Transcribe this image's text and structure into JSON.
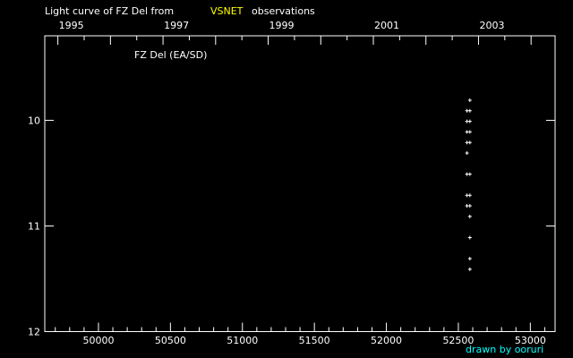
{
  "chart_data": {
    "type": "scatter",
    "title_prefix": "Light curve of FZ Del from",
    "title_source": "VSNET",
    "title_suffix": "observations",
    "object_label": "FZ Del (EA/SD)",
    "credit": "drawn by ooruri",
    "xlabel": "",
    "ylabel": "",
    "xlim": [
      49627,
      53172
    ],
    "ylim": [
      12,
      9.2
    ],
    "y_inverted": true,
    "x_ticks": [
      50000,
      50500,
      51000,
      51500,
      52000,
      52500,
      53000
    ],
    "x_tick_labels": [
      "50000",
      "50500",
      "51000",
      "51500",
      "52000",
      "52500",
      "53000"
    ],
    "y_ticks": [
      10,
      11,
      12
    ],
    "y_tick_labels": [
      "10",
      "11",
      "12"
    ],
    "top_axis_year_labels": [
      "1995",
      "1997",
      "1999",
      "2001",
      "2003"
    ],
    "top_axis_years": [
      1995,
      1997,
      1999,
      2001,
      2003
    ],
    "grid": false,
    "colors": {
      "background": "#000000",
      "axes": "#ffffff",
      "points": "#ffffff",
      "source": "#ffff00",
      "credit": "#00ffff"
    },
    "marker": "plus",
    "points": [
      {
        "x": 52580,
        "y": 9.81
      },
      {
        "x": 52560,
        "y": 9.91
      },
      {
        "x": 52580,
        "y": 9.91
      },
      {
        "x": 52560,
        "y": 10.01
      },
      {
        "x": 52580,
        "y": 10.01
      },
      {
        "x": 52560,
        "y": 10.11
      },
      {
        "x": 52580,
        "y": 10.11
      },
      {
        "x": 52560,
        "y": 10.21
      },
      {
        "x": 52580,
        "y": 10.21
      },
      {
        "x": 52560,
        "y": 10.31
      },
      {
        "x": 52560,
        "y": 10.51
      },
      {
        "x": 52580,
        "y": 10.51
      },
      {
        "x": 52560,
        "y": 10.71
      },
      {
        "x": 52580,
        "y": 10.71
      },
      {
        "x": 52560,
        "y": 10.81
      },
      {
        "x": 52580,
        "y": 10.81
      },
      {
        "x": 52580,
        "y": 10.91
      },
      {
        "x": 52580,
        "y": 11.11
      },
      {
        "x": 52580,
        "y": 11.31
      },
      {
        "x": 52580,
        "y": 11.41
      }
    ]
  }
}
